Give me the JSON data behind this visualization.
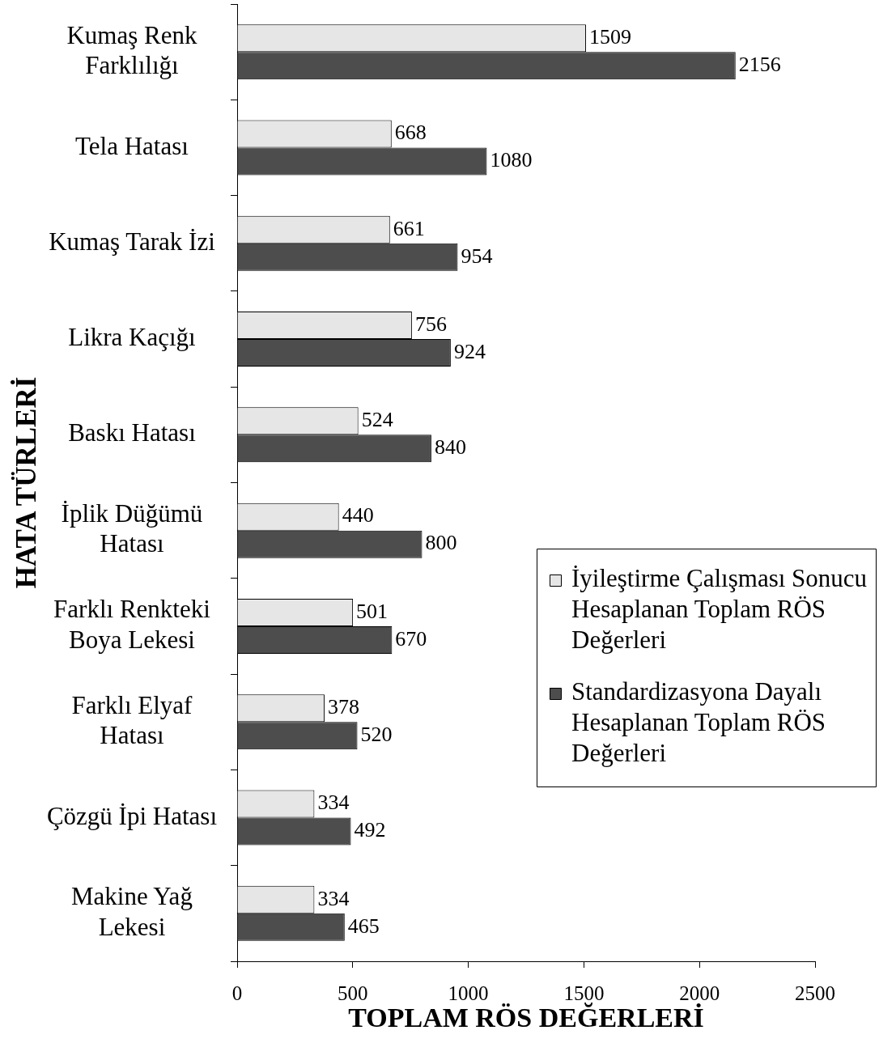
{
  "chart_data": {
    "type": "bar",
    "orientation": "horizontal",
    "categories": [
      "Kumaş Renk Farklılığı",
      "Tela Hatası",
      "Kumaş Tarak İzi",
      "Likra Kaçığı",
      "Baskı Hatası",
      "İplik Düğümü Hatası",
      "Farklı Renkteki Boya Lekesi",
      "Farklı Elyaf Hatası",
      "Çözgü İpi Hatası",
      "Makine Yağ Lekesi"
    ],
    "series": [
      {
        "name": "İyileştirme Çalışması Sonucu Hesaplanan Toplam RÖS Değerleri",
        "color": "#e6e6e6",
        "values": [
          1509,
          668,
          661,
          756,
          524,
          440,
          501,
          378,
          334,
          334
        ]
      },
      {
        "name": "Standardizasyona Dayalı Hesaplanan Toplam RÖS Değerleri",
        "color": "#4d4d4d",
        "values": [
          2156,
          1080,
          954,
          924,
          840,
          800,
          670,
          520,
          492,
          465
        ]
      }
    ],
    "xlabel": "TOPLAM RÖS DEĞERLERİ",
    "ylabel": "HATA TÜRLERİ",
    "xlim": [
      0,
      2500
    ],
    "xticks": [
      0,
      500,
      1000,
      1500,
      2000,
      2500
    ],
    "grid": false,
    "legend": "right",
    "data_labels": true
  }
}
